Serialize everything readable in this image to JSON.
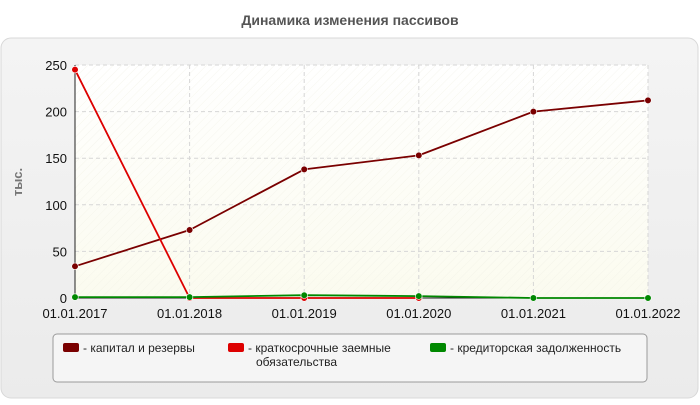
{
  "chart_data": {
    "type": "line",
    "title": "Динамика изменения пассивов",
    "ylabel": "тыс.",
    "xlabel": "",
    "x": [
      "01.01.2017",
      "01.01.2018",
      "01.01.2019",
      "01.01.2020",
      "01.01.2021",
      "01.01.2022"
    ],
    "ylim": [
      0,
      250
    ],
    "yticks": [
      "0",
      "50",
      "100",
      "150",
      "200",
      "250"
    ],
    "grid": true,
    "legend_position": "bottom",
    "series": [
      {
        "name": "капитал и резервы",
        "color": "#7a0000",
        "values": [
          34,
          73,
          138,
          153,
          200,
          212
        ]
      },
      {
        "name": "краткосрочные заемные обязательства",
        "color": "#dd0000",
        "values": [
          245,
          0,
          0,
          0,
          null,
          null
        ]
      },
      {
        "name": "кредиторская задолженность",
        "color": "#008800",
        "values": [
          1,
          1,
          3,
          2,
          0,
          0
        ]
      }
    ],
    "legend_lines": [
      [
        "капитал и резервы"
      ],
      [
        "краткосрочные заемные",
        "обязательства"
      ],
      [
        "кредиторская задолженность"
      ]
    ]
  }
}
